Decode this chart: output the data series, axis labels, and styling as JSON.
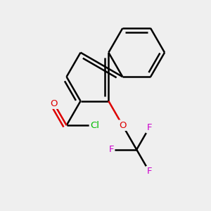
{
  "bg_color": "#efefef",
  "bond_color": "#000000",
  "bond_width": 1.8,
  "atom_colors": {
    "Cl": "#00bb00",
    "O": "#dd0000",
    "F": "#cc00cc"
  },
  "figsize": [
    3.0,
    3.0
  ],
  "dpi": 100,
  "xlim": [
    -2.8,
    2.8
  ],
  "ylim": [
    -2.8,
    2.8
  ]
}
